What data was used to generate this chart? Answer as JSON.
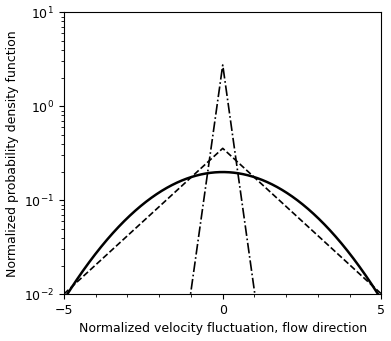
{
  "xlabel": "Normalized velocity fluctuation, flow direction",
  "ylabel": "Normalized probability density function",
  "xlim": [
    -5,
    5
  ],
  "ylim_log_min": -2,
  "ylim_log_max": 1,
  "xticks": [
    -5,
    0,
    5
  ],
  "background_color": "#ffffff",
  "line_color": "#000000",
  "gaussian_sigma": 2.0,
  "laplace_b_dashed": 1.4,
  "laplace_b_dashdot": 0.18,
  "num_points": 3000,
  "gaussian_linewidth": 1.8,
  "dashed_linewidth": 1.2,
  "dashdot_linewidth": 1.2,
  "xlabel_fontsize": 9,
  "ylabel_fontsize": 9,
  "tick_fontsize": 9
}
